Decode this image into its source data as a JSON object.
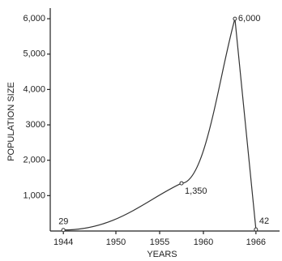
{
  "chart_data": {
    "type": "line",
    "x_label": "YEARS",
    "y_label": "POPULATION SIZE",
    "x": [
      1944,
      1957.5,
      1963.6,
      1966
    ],
    "values": [
      29,
      1350,
      6000,
      42
    ],
    "value_labels": [
      "29",
      "1,350",
      "6,000",
      "42"
    ],
    "color": "#333333",
    "xlim": [
      1942.5,
      1968.7
    ],
    "xticks": [
      1944,
      1950,
      1955,
      1960,
      1966
    ],
    "ylim": [
      0,
      6300
    ],
    "yticks": [
      {
        "value": 1000,
        "label": "1,000"
      },
      {
        "value": 2000,
        "label": "2,000"
      },
      {
        "value": 3000,
        "label": "3000"
      },
      {
        "value": 4000,
        "label": "4,000"
      },
      {
        "value": 5000,
        "label": "5,000"
      },
      {
        "value": 6000,
        "label": "6,000"
      }
    ],
    "grid": false
  }
}
